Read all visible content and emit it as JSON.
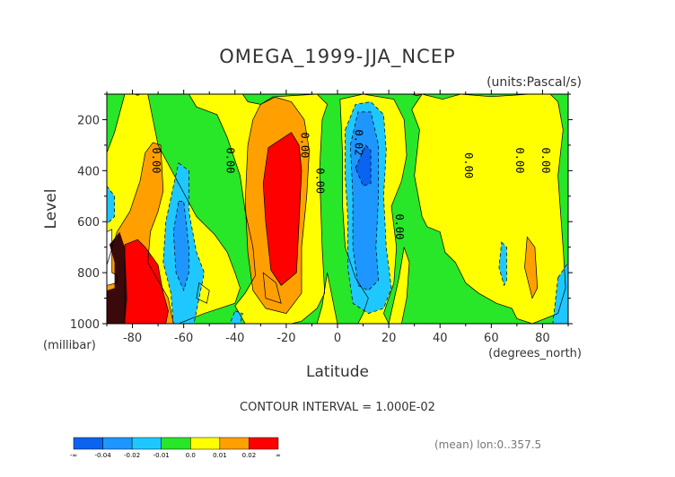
{
  "chart_data": {
    "type": "heatmap",
    "title": "OMEGA_1999-JJA_NCEP",
    "units": "(units:Pascal/s)",
    "xlabel": "Latitude",
    "xunits": "(degrees_north)",
    "ylabel": "Level",
    "yunits": "(millibar)",
    "x_range": [
      -90,
      90
    ],
    "y_range": [
      1000,
      100
    ],
    "x_ticks": [
      -80,
      -60,
      -40,
      -20,
      0,
      20,
      40,
      60,
      80
    ],
    "x_tick_labels": [
      "-80",
      "-60",
      "-40",
      "-20",
      "0",
      "20",
      "40",
      "60",
      "80"
    ],
    "y_ticks": [
      200,
      400,
      600,
      800,
      1000
    ],
    "y_tick_labels": [
      "200",
      "400",
      "600",
      "800",
      "1000"
    ],
    "contour_interval_text": "CONTOUR INTERVAL = 1.000E-02",
    "footer_text": "(mean) lon:0..357.5",
    "colorbar": {
      "boundaries": [
        "-∞",
        "-0.04",
        "-0.02",
        "-0.01",
        "0.0",
        "0.01",
        "0.02",
        "∞"
      ],
      "colors": [
        "#0a64f0",
        "#1e96ff",
        "#1ec8ff",
        "#28e628",
        "#ffff00",
        "#ffa000",
        "#ff0000"
      ]
    },
    "contour_labels": [
      {
        "text": "0.00",
        "lat": -71,
        "level": 360
      },
      {
        "text": "0.00",
        "lat": -42,
        "level": 360
      },
      {
        "text": "0.00",
        "lat": -13,
        "level": 300
      },
      {
        "text": "0.00",
        "lat": -7,
        "level": 440
      },
      {
        "text": "0.02",
        "lat": 8,
        "level": 290
      },
      {
        "text": "0.00",
        "lat": 24,
        "level": 620
      },
      {
        "text": "0.00",
        "lat": 51,
        "level": 380
      },
      {
        "text": "0.00",
        "lat": 71,
        "level": 360
      },
      {
        "text": "0.00",
        "lat": 81,
        "level": 360
      }
    ],
    "regions": [
      {
        "level": "0.0",
        "color": "#28e628",
        "points": [
          [
            -90,
            100
          ],
          [
            90,
            100
          ],
          [
            90,
            1000
          ],
          [
            -90,
            1000
          ]
        ]
      },
      {
        "level": "0.0",
        "color": "#ffff00",
        "points": [
          [
            -83,
            100
          ],
          [
            -74,
            100
          ],
          [
            -70,
            300
          ],
          [
            -62,
            450
          ],
          [
            -55,
            580
          ],
          [
            -48,
            650
          ],
          [
            -43,
            720
          ],
          [
            -40,
            800
          ],
          [
            -38,
            860
          ],
          [
            -40,
            920
          ],
          [
            -52,
            960
          ],
          [
            -62,
            1000
          ],
          [
            -90,
            1000
          ],
          [
            -90,
            330
          ],
          [
            -87,
            250
          ]
        ]
      },
      {
        "level": "0.0",
        "color": "#ffff00",
        "points": [
          [
            -58,
            100
          ],
          [
            -37,
            100
          ],
          [
            -35,
            130
          ],
          [
            -30,
            140
          ],
          [
            -24,
            110
          ],
          [
            -8,
            100
          ],
          [
            -4,
            140
          ],
          [
            -6,
            200
          ],
          [
            -7,
            400
          ],
          [
            -6,
            700
          ],
          [
            -5,
            880
          ],
          [
            -8,
            940
          ],
          [
            -14,
            990
          ],
          [
            -18,
            1000
          ],
          [
            -36,
            1000
          ],
          [
            -40,
            930
          ],
          [
            -36,
            880
          ],
          [
            -32,
            810
          ],
          [
            -33,
            700
          ],
          [
            -36,
            560
          ],
          [
            -38,
            420
          ],
          [
            -43,
            270
          ],
          [
            -47,
            180
          ],
          [
            -55,
            150
          ]
        ]
      },
      {
        "level": "0.0",
        "color": "#ffff00",
        "points": [
          [
            -4,
            800
          ],
          [
            -1,
            950
          ],
          [
            0,
            1000
          ],
          [
            -8,
            1000
          ],
          [
            -6,
            930
          ]
        ]
      },
      {
        "level": "0.0",
        "color": "#ffff00",
        "points": [
          [
            1,
            120
          ],
          [
            10,
            100
          ],
          [
            22,
            120
          ],
          [
            26,
            200
          ],
          [
            27,
            340
          ],
          [
            25,
            440
          ],
          [
            21,
            540
          ],
          [
            23,
            700
          ],
          [
            22,
            840
          ],
          [
            18,
            960
          ],
          [
            20,
            1000
          ],
          [
            8,
            1000
          ],
          [
            10,
            960
          ],
          [
            12,
            900
          ],
          [
            7,
            820
          ],
          [
            3,
            700
          ],
          [
            2,
            540
          ],
          [
            2,
            340
          ]
        ]
      },
      {
        "level": "0.0",
        "color": "#ffff00",
        "points": [
          [
            33,
            100
          ],
          [
            41,
            120
          ],
          [
            48,
            100
          ],
          [
            60,
            110
          ],
          [
            75,
            100
          ],
          [
            83,
            100
          ],
          [
            86,
            130
          ],
          [
            88,
            240
          ],
          [
            86,
            420
          ],
          [
            87,
            560
          ],
          [
            88,
            700
          ],
          [
            89,
            860
          ],
          [
            86,
            960
          ],
          [
            76,
            1000
          ],
          [
            70,
            980
          ],
          [
            68,
            940
          ],
          [
            62,
            920
          ],
          [
            55,
            880
          ],
          [
            50,
            840
          ],
          [
            46,
            760
          ],
          [
            42,
            720
          ],
          [
            40,
            640
          ],
          [
            35,
            620
          ],
          [
            33,
            580
          ],
          [
            30,
            420
          ],
          [
            32,
            240
          ],
          [
            29,
            160
          ]
        ]
      },
      {
        "level": "0.0",
        "color": "#ffff00",
        "points": [
          [
            26,
            700
          ],
          [
            28,
            760
          ],
          [
            27,
            900
          ],
          [
            25,
            1000
          ],
          [
            20,
            1000
          ],
          [
            24,
            820
          ]
        ]
      },
      {
        "level": "0.0",
        "color": "#ffff00",
        "points": [
          [
            -54,
            840
          ],
          [
            -50,
            870
          ],
          [
            -51,
            920
          ],
          [
            -55,
            900
          ]
        ]
      },
      {
        "level": "0.0",
        "color": "#ffff00",
        "points": [
          [
            -29,
            800
          ],
          [
            -24,
            840
          ],
          [
            -22,
            920
          ],
          [
            -28,
            900
          ]
        ]
      },
      {
        "level": "0.01",
        "color": "#ffa000",
        "points": [
          [
            -75,
            330
          ],
          [
            -72,
            290
          ],
          [
            -69,
            300
          ],
          [
            -68,
            480
          ],
          [
            -70,
            560
          ],
          [
            -73,
            640
          ],
          [
            -74,
            760
          ],
          [
            -66,
            900
          ],
          [
            -64,
            1000
          ],
          [
            -90,
            1000
          ],
          [
            -90,
            770
          ],
          [
            -86,
            640
          ],
          [
            -81,
            560
          ],
          [
            -77,
            440
          ]
        ]
      },
      {
        "level": "0.01",
        "color": "#ffa000",
        "points": [
          [
            -30,
            140
          ],
          [
            -25,
            110
          ],
          [
            -18,
            130
          ],
          [
            -13,
            200
          ],
          [
            -11,
            320
          ],
          [
            -12,
            500
          ],
          [
            -14,
            700
          ],
          [
            -14,
            880
          ],
          [
            -20,
            960
          ],
          [
            -28,
            940
          ],
          [
            -33,
            870
          ],
          [
            -35,
            720
          ],
          [
            -36,
            520
          ],
          [
            -35,
            300
          ],
          [
            -33,
            200
          ]
        ]
      },
      {
        "level": "0.01",
        "color": "#ffa000",
        "points": [
          [
            74,
            660
          ],
          [
            77,
            700
          ],
          [
            78,
            860
          ],
          [
            76,
            900
          ],
          [
            73,
            780
          ]
        ]
      },
      {
        "level": "0.01",
        "color": "#ffa000",
        "points": [
          [
            -79,
            100
          ],
          [
            -77,
            100
          ],
          [
            -78,
            105
          ]
        ]
      },
      {
        "level": "0.01",
        "color": "#ffa000",
        "points": [
          [
            29,
            100
          ],
          [
            33,
            100
          ],
          [
            31,
            106
          ]
        ]
      },
      {
        "level": "0.02",
        "color": "#ff0000",
        "points": [
          [
            -83,
            690
          ],
          [
            -78,
            670
          ],
          [
            -75,
            700
          ],
          [
            -70,
            770
          ],
          [
            -68,
            880
          ],
          [
            -66,
            950
          ],
          [
            -67,
            1000
          ],
          [
            -83,
            1000
          ]
        ]
      },
      {
        "level": "0.02",
        "color": "#ff0000",
        "points": [
          [
            -27,
            310
          ],
          [
            -18,
            250
          ],
          [
            -15,
            300
          ],
          [
            -14,
            400
          ],
          [
            -15,
            600
          ],
          [
            -16,
            800
          ],
          [
            -22,
            850
          ],
          [
            -26,
            790
          ],
          [
            -28,
            600
          ],
          [
            -29,
            450
          ]
        ]
      },
      {
        "level": "-0.01",
        "color": "#1ec8ff",
        "points": [
          [
            -62,
            370
          ],
          [
            -58,
            400
          ],
          [
            -58,
            560
          ],
          [
            -55,
            720
          ],
          [
            -52,
            800
          ],
          [
            -54,
            900
          ],
          [
            -56,
            1000
          ],
          [
            -64,
            1000
          ],
          [
            -65,
            880
          ],
          [
            -68,
            760
          ],
          [
            -67,
            600
          ],
          [
            -64,
            460
          ]
        ]
      },
      {
        "level": "-0.01",
        "color": "#1ec8ff",
        "points": [
          [
            3,
            240
          ],
          [
            7,
            140
          ],
          [
            13,
            130
          ],
          [
            18,
            180
          ],
          [
            19,
            320
          ],
          [
            18,
            500
          ],
          [
            19,
            700
          ],
          [
            21,
            860
          ],
          [
            18,
            940
          ],
          [
            12,
            960
          ],
          [
            6,
            920
          ],
          [
            4,
            780
          ],
          [
            4,
            580
          ],
          [
            3,
            420
          ]
        ]
      },
      {
        "level": "-0.01",
        "color": "#1ec8ff",
        "points": [
          [
            -90,
            460
          ],
          [
            -87,
            500
          ],
          [
            -87,
            580
          ],
          [
            -90,
            610
          ]
        ]
      },
      {
        "level": "-0.01",
        "color": "#1ec8ff",
        "points": [
          [
            86,
            820
          ],
          [
            90,
            760
          ],
          [
            90,
            1000
          ],
          [
            84,
            1000
          ]
        ]
      },
      {
        "level": "-0.01",
        "color": "#1ec8ff",
        "points": [
          [
            64,
            680
          ],
          [
            66,
            700
          ],
          [
            66,
            830
          ],
          [
            65,
            850
          ],
          [
            63,
            780
          ]
        ]
      },
      {
        "level": "-0.01",
        "color": "#1ec8ff",
        "points": [
          [
            -40,
            950
          ],
          [
            -37,
            960
          ],
          [
            -38,
            1000
          ],
          [
            -42,
            1000
          ]
        ]
      },
      {
        "level": "-0.02",
        "color": "#1e96ff",
        "points": [
          [
            -62,
            520
          ],
          [
            -60,
            520
          ],
          [
            -58,
            700
          ],
          [
            -58,
            800
          ],
          [
            -60,
            870
          ],
          [
            -63,
            800
          ],
          [
            -64,
            640
          ]
        ]
      },
      {
        "level": "-0.02",
        "color": "#1e96ff",
        "points": [
          [
            5,
            300
          ],
          [
            8,
            170
          ],
          [
            13,
            170
          ],
          [
            16,
            300
          ],
          [
            16,
            500
          ],
          [
            15,
            700
          ],
          [
            16,
            830
          ],
          [
            12,
            870
          ],
          [
            8,
            850
          ],
          [
            6,
            700
          ],
          [
            6,
            500
          ]
        ]
      },
      {
        "level": "missing",
        "color": "#ffffff",
        "points": [
          [
            -90,
            640
          ],
          [
            -88,
            630
          ],
          [
            -88,
            800
          ],
          [
            -86,
            810
          ],
          [
            -86,
            840
          ],
          [
            -90,
            850
          ]
        ]
      },
      {
        "level": "-0.04",
        "color": "#0a64f0",
        "points": [
          [
            7,
            390
          ],
          [
            11,
            300
          ],
          [
            13,
            320
          ],
          [
            13,
            450
          ],
          [
            10,
            460
          ]
        ]
      }
    ],
    "dark_patch": {
      "color": "#3a0a0a",
      "points": [
        [
          -89,
          690
        ],
        [
          -85,
          640
        ],
        [
          -83,
          700
        ],
        [
          -82,
          900
        ],
        [
          -83,
          1000
        ],
        [
          -90,
          1000
        ],
        [
          -90,
          870
        ],
        [
          -87,
          860
        ],
        [
          -87,
          760
        ]
      ]
    }
  }
}
